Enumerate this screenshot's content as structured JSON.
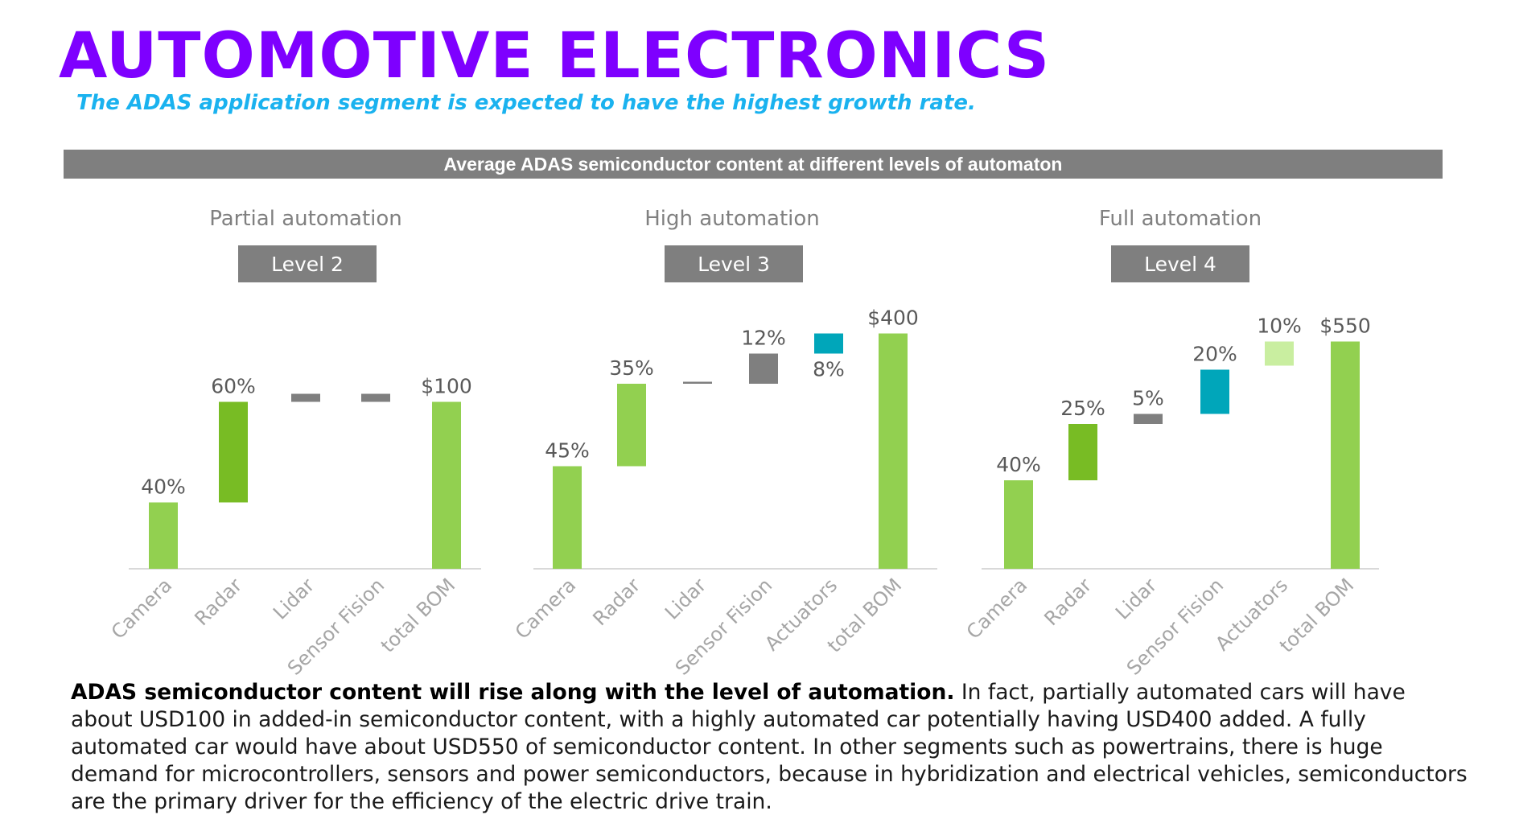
{
  "title": "AUTOMOTIVE ELECTRONICS",
  "subtitle": "The ADAS application segment is expected to have the highest growth rate.",
  "header_bar": "Average ADAS semiconductor content at different levels of automaton",
  "body": {
    "lead": "ADAS semiconductor content will rise along with the level of automation.",
    "text": " In fact, partially automated cars will have about USD100 in added-in semiconductor content, with a highly automated car potentially having USD400 added. A fully automated car would have about USD550 of semiconductor content. In other segments such as powertrains, there is huge demand for microcontrollers, sensors and power semiconductors, because in hybridization and electrical vehicles, semiconductors are the primary driver for the efficiency of the electric drive train."
  },
  "colors": {
    "title": "#7e00ff",
    "subtitle": "#1ab2ef",
    "light_green": "#92d050",
    "dark_green": "#78bc24",
    "grey": "#7f7f7f",
    "teal": "#00a6ba",
    "pale_green": "#c9eea0"
  },
  "chart_data": [
    {
      "type": "bar",
      "subtype": "waterfall",
      "title": "Partial automation",
      "level": "Level 2",
      "categories": [
        "Camera",
        "Radar",
        "Lidar",
        "Sensor Fision",
        "total BOM"
      ],
      "bars": [
        {
          "start": 0,
          "end": 33,
          "label": "40%",
          "color": "light_green"
        },
        {
          "start": 33,
          "end": 83,
          "label": "60%",
          "color": "dark_green"
        },
        {
          "start": 83,
          "end": 87,
          "label": "",
          "color": "grey"
        },
        {
          "start": 83,
          "end": 87,
          "label": "",
          "color": "grey"
        },
        {
          "start": 0,
          "end": 83,
          "label": "$100",
          "color": "light_green"
        }
      ]
    },
    {
      "type": "bar",
      "subtype": "waterfall",
      "title": "High automation",
      "level": "Level 3",
      "categories": [
        "Camera",
        "Radar",
        "Lidar",
        "Sensor Fision",
        "Actuators",
        "total BOM"
      ],
      "bars": [
        {
          "start": 0,
          "end": 51,
          "label": "45%",
          "color": "light_green"
        },
        {
          "start": 51,
          "end": 92,
          "label": "35%",
          "color": "light_green"
        },
        {
          "start": 92,
          "end": 93,
          "label": "",
          "color": "grey"
        },
        {
          "start": 92,
          "end": 107,
          "label": "12%",
          "color": "grey"
        },
        {
          "start": 107,
          "end": 117,
          "label": "8%",
          "color": "teal",
          "label_pos": "below"
        },
        {
          "start": 0,
          "end": 117,
          "label": "$400",
          "color": "light_green"
        }
      ]
    },
    {
      "type": "bar",
      "subtype": "waterfall",
      "title": "Full automation",
      "level": "Level 4",
      "categories": [
        "Camera",
        "Radar",
        "Lidar",
        "Sensor Fision",
        "Actuators",
        "total BOM"
      ],
      "bars": [
        {
          "start": 0,
          "end": 44,
          "label": "40%",
          "color": "light_green"
        },
        {
          "start": 44,
          "end": 72,
          "label": "25%",
          "color": "dark_green"
        },
        {
          "start": 72,
          "end": 77,
          "label": "5%",
          "color": "grey"
        },
        {
          "start": 77,
          "end": 99,
          "label": "20%",
          "color": "teal"
        },
        {
          "start": 101,
          "end": 113,
          "label": "10%",
          "color": "pale_green"
        },
        {
          "start": 0,
          "end": 113,
          "label": "$550",
          "color": "light_green"
        }
      ]
    }
  ]
}
